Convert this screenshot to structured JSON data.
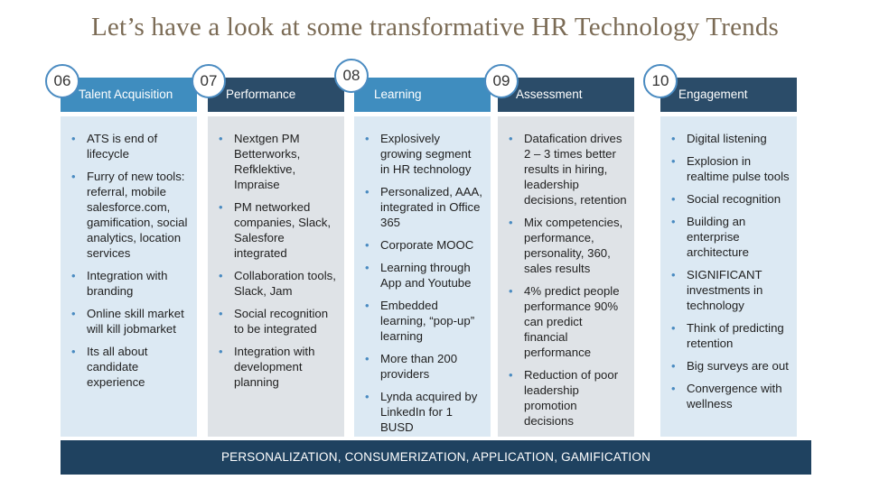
{
  "title": "Let’s have a look at some transformative HR Technology Trends",
  "colors": {
    "title": "#7b6b55",
    "accent_bullet": "#4a8bc1",
    "footer_bg": "#1f4260"
  },
  "columns": [
    {
      "number": "06",
      "header": "Talent Acquisition",
      "header_color": "#3f8dbf",
      "body_color": "#dce9f3",
      "items": [
        "ATS is end of lifecycle",
        "Furry of new tools: referral, mobile salesforce.com, gamification, social analytics, location services",
        "Integration with branding",
        "Online skill market will kill jobmarket",
        "Its all about candidate experience"
      ]
    },
    {
      "number": "07",
      "header": "Performance",
      "header_color": "#2b4c69",
      "body_color": "#dfe3e7",
      "items": [
        "Nextgen PM Betterworks, Refklektive, Impraise",
        "PM networked companies, Slack, Salesfore integrated",
        "Collaboration tools, Slack, Jam",
        "Social recognition to be integrated",
        "Integration with development planning"
      ]
    },
    {
      "number": "08",
      "header": "Learning",
      "header_color": "#3f8dbf",
      "body_color": "#dce9f3",
      "items": [
        "Explosively growing segment in HR technology",
        "Personalized, AAA, integrated in Office 365",
        "Corporate MOOC",
        "Learning through App and Youtube",
        "Embedded learning, “pop-up” learning",
        "More than 200 providers",
        "Lynda acquired by LinkedIn for 1 BUSD"
      ]
    },
    {
      "number": "09",
      "header": "Assessment",
      "header_color": "#2b4c69",
      "body_color": "#dfe3e7",
      "items": [
        "Datafication drives 2 – 3 times better results in hiring, leadership decisions, retention",
        "Mix competencies, performance, personality, 360, sales results",
        "4% predict people performance 90% can predict financial performance",
        "Reduction of poor leadership promotion decisions"
      ]
    },
    {
      "number": "10",
      "header": "Engagement",
      "header_color": "#2b4c69",
      "body_color": "#dce9f3",
      "items": [
        "Digital listening",
        "Explosion in realtime pulse tools",
        "Social recognition",
        "Building an enterprise architecture",
        "SIGNIFICANT investments in technology",
        "Think of predicting retention",
        "Big surveys are out",
        "Convergence with wellness"
      ]
    }
  ],
  "footer": "PERSONALIZATION, CONSUMERIZATION, APPLICATION, GAMIFICATION"
}
